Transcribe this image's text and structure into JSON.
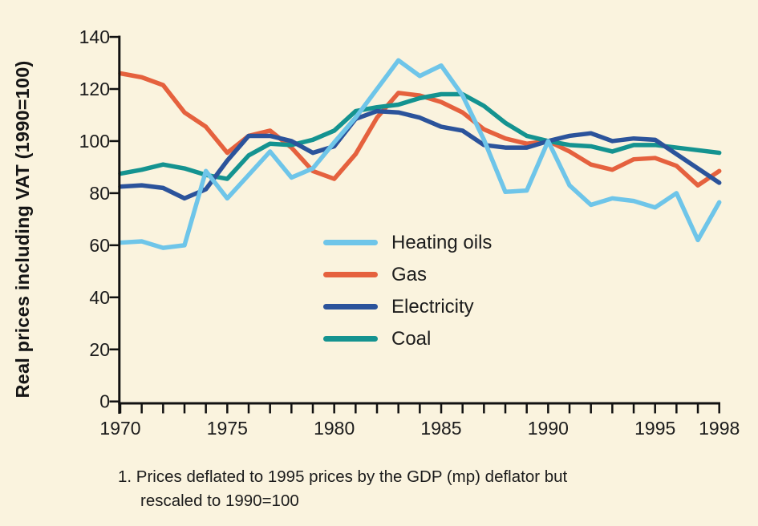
{
  "figure": {
    "background": "#FAF3DE",
    "axis_color": "#111111",
    "footnote_line1": "1. Prices deflated to 1995 prices by the GDP (mp) deflator but",
    "footnote_line2": "rescaled to 1990=100"
  },
  "chart_data": {
    "type": "line",
    "title": "",
    "xlabel": "",
    "ylabel": "Real prices including VAT (1990=100)",
    "ylim": [
      0,
      140
    ],
    "xlim": [
      1970,
      1998
    ],
    "grid": false,
    "legend_position": "inside-center",
    "y_ticks": [
      0,
      20,
      40,
      60,
      80,
      100,
      120,
      140
    ],
    "x_tick_labels": [
      1970,
      1975,
      1980,
      1985,
      1990,
      1995,
      1998
    ],
    "x": [
      1970,
      1971,
      1972,
      1973,
      1974,
      1975,
      1976,
      1977,
      1978,
      1979,
      1980,
      1981,
      1982,
      1983,
      1984,
      1985,
      1986,
      1987,
      1988,
      1989,
      1990,
      1991,
      1992,
      1993,
      1994,
      1995,
      1996,
      1997,
      1998
    ],
    "series": [
      {
        "name": "Heating oils",
        "color": "#6EC5E9",
        "values": [
          61,
          61.5,
          59,
          60,
          88.5,
          78,
          87,
          96,
          86,
          89.5,
          99.5,
          109,
          120,
          131,
          125,
          129,
          117.5,
          100.5,
          80.5,
          81,
          100,
          83,
          75.5,
          78,
          77,
          74.5,
          80,
          62,
          76.5
        ]
      },
      {
        "name": "Gas",
        "color": "#E5613E",
        "values": [
          126,
          124.5,
          121.5,
          111,
          105.5,
          95.5,
          102,
          104,
          97.5,
          88.5,
          85.5,
          95,
          109,
          118.5,
          117.5,
          115,
          111,
          104.5,
          101,
          99,
          100,
          96,
          91,
          89,
          93,
          93.5,
          90.5,
          83,
          88.5
        ]
      },
      {
        "name": "Electricity",
        "color": "#2B539B",
        "values": [
          82.5,
          83,
          82,
          78,
          81.5,
          92.5,
          102,
          102,
          100,
          95.5,
          98,
          108.5,
          111.5,
          111,
          109,
          105.5,
          104,
          98.5,
          97.5,
          97.5,
          100,
          102,
          103,
          100,
          101,
          100.5,
          95,
          89.5,
          84
        ]
      },
      {
        "name": "Electricity",
        "color": "#2B539B",
        "hidden": true,
        "values": []
      },
      {
        "name": "Coal",
        "color": "#149390",
        "values": [
          87.5,
          89,
          91,
          89.5,
          87,
          85.5,
          94.5,
          99,
          98.5,
          100.5,
          104,
          111.5,
          113,
          114,
          116.5,
          118,
          118,
          113.5,
          107,
          102,
          100,
          98.5,
          98,
          96,
          98.5,
          98.5,
          97.5,
          96.5,
          95.5
        ]
      }
    ]
  }
}
